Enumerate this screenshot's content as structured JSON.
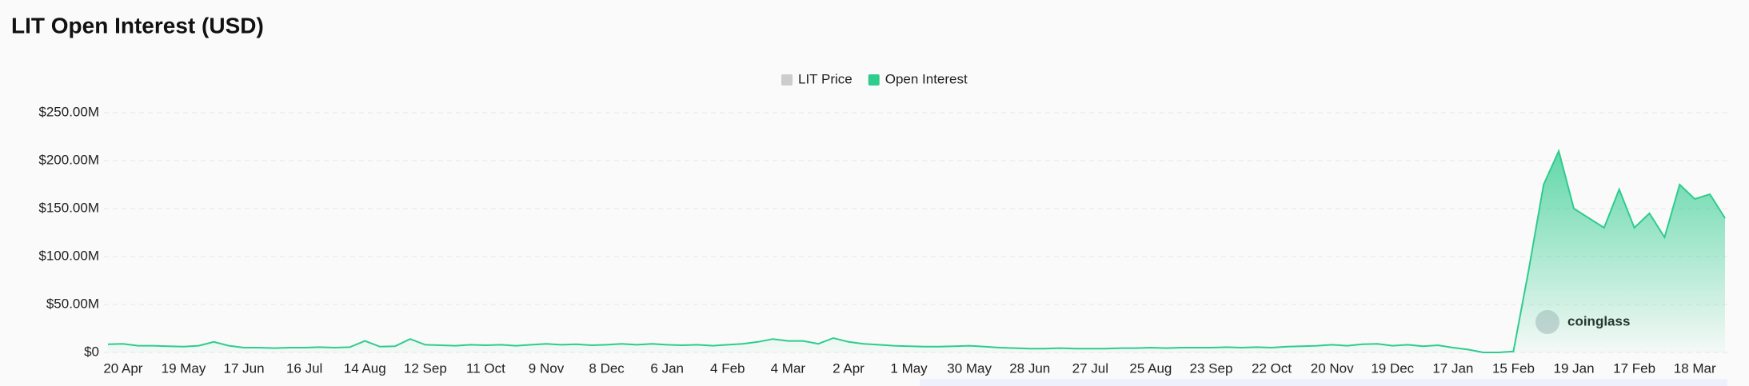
{
  "chart_data": {
    "type": "area",
    "title": "LIT Open Interest (USD)",
    "legend_items": [
      {
        "name": "LIT Price",
        "color": "#cccccc"
      }
    ],
    "watermark": "coinglass",
    "categories": [
      null,
      "20 Apr",
      null,
      null,
      null,
      "19 May",
      null,
      null,
      null,
      "17 Jun",
      null,
      null,
      null,
      "16 Jul",
      null,
      null,
      null,
      "14 Aug",
      null,
      null,
      null,
      "12 Sep",
      null,
      null,
      null,
      "11 Oct",
      null,
      null,
      null,
      "9 Nov",
      null,
      null,
      null,
      "8 Dec",
      null,
      null,
      null,
      "6 Jan",
      null,
      null,
      null,
      "4 Feb",
      null,
      null,
      null,
      "4 Mar",
      null,
      null,
      null,
      "2 Apr",
      null,
      null,
      null,
      "1 May",
      null,
      null,
      null,
      "30 May",
      null,
      null,
      null,
      "28 Jun",
      null,
      null,
      null,
      "27 Jul",
      null,
      null,
      null,
      "25 Aug",
      null,
      null,
      null,
      "23 Sep",
      null,
      null,
      null,
      "22 Oct",
      null,
      null,
      null,
      "20 Nov",
      null,
      null,
      null,
      "19 Dec",
      null,
      null,
      null,
      "17 Jan",
      null,
      null,
      null,
      "15 Feb",
      null,
      null,
      null,
      "19 Jan",
      null,
      null,
      null,
      "17 Feb",
      null,
      null,
      null,
      "18 Mar",
      null,
      null
    ],
    "series": [
      {
        "name": "Open Interest",
        "color": "#2ecc8e",
        "values": [
          8500000,
          9000000,
          7000000,
          7000000,
          6500000,
          6000000,
          7000000,
          11000000,
          7000000,
          5000000,
          5000000,
          4500000,
          5000000,
          5000000,
          5500000,
          5000000,
          5500000,
          12000000,
          6000000,
          6500000,
          14000000,
          8000000,
          7500000,
          7000000,
          8000000,
          7500000,
          8000000,
          7000000,
          8000000,
          9000000,
          8000000,
          8500000,
          7500000,
          8000000,
          9000000,
          8000000,
          9000000,
          8000000,
          7500000,
          8000000,
          7000000,
          8000000,
          9000000,
          11000000,
          14000000,
          12000000,
          12000000,
          9000000,
          15000000,
          11000000,
          9000000,
          8000000,
          7000000,
          6500000,
          6000000,
          6000000,
          6500000,
          7000000,
          6000000,
          5000000,
          4500000,
          4000000,
          4000000,
          4500000,
          4000000,
          4000000,
          4000000,
          4500000,
          4500000,
          5000000,
          4500000,
          5000000,
          5000000,
          5000000,
          5500000,
          5000000,
          5500000,
          5000000,
          6000000,
          6500000,
          7000000,
          8000000,
          7000000,
          8500000,
          9000000,
          7000000,
          8000000,
          6500000,
          7500000,
          5000000,
          3000000,
          0,
          0,
          1000000,
          85000000,
          175000000,
          210000000,
          150000000,
          140000000,
          130000000,
          170000000,
          130000000,
          145000000,
          120000000,
          175000000,
          160000000,
          165000000,
          140000000
        ]
      }
    ],
    "ylim": [
      0,
      250000000
    ],
    "yticks": [
      {
        "value": 0,
        "label": "$0"
      },
      {
        "value": 50000000,
        "label": "$50.00M"
      },
      {
        "value": 100000000,
        "label": "$100.00M"
      },
      {
        "value": 150000000,
        "label": "$150.00M"
      },
      {
        "value": 200000000,
        "label": "$200.00M"
      },
      {
        "value": 250000000,
        "label": "$250.00M"
      }
    ],
    "grid": true
  }
}
